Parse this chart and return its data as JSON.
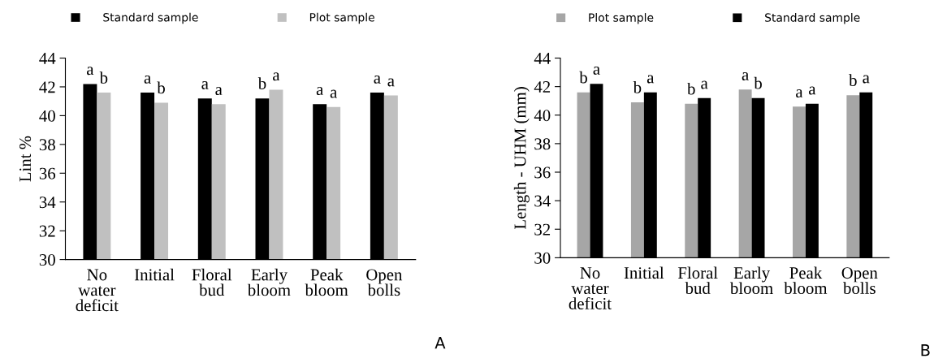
{
  "chart_data": [
    {
      "type": "bar",
      "ylabel": "Lint %",
      "categories": [
        "No\nwater\ndeficit",
        "Initial",
        "Floral\nbud",
        "Early\nbloom",
        "Peak\nbloom",
        "Open\nbolls"
      ],
      "series": [
        {
          "name": "Standard sample",
          "color": "#000000",
          "values": [
            42.2,
            41.6,
            41.2,
            41.2,
            40.8,
            41.6
          ],
          "value_labels": [
            "a",
            "a",
            "a",
            "b",
            "a",
            "a"
          ]
        },
        {
          "name": "Plot sample",
          "color": "#c0c0c0",
          "values": [
            41.6,
            40.9,
            40.8,
            41.8,
            40.6,
            41.4
          ],
          "value_labels": [
            "b",
            "b",
            "a",
            "a",
            "a",
            "a"
          ]
        }
      ],
      "ylim": [
        30,
        44
      ],
      "yticks": [
        30,
        32,
        34,
        36,
        38,
        40,
        42,
        44
      ],
      "grid": false,
      "legend": "top",
      "annotations": [
        "A"
      ]
    },
    {
      "type": "bar",
      "ylabel": "Length - UHM (mm)",
      "categories": [
        "No\nwater\ndeficit",
        "Initial",
        "Floral\nbud",
        "Early\nbloom",
        "Peak\nbloom",
        "Open\nbolls"
      ],
      "series": [
        {
          "name": "Plot sample",
          "color": "#a6a6a6",
          "values": [
            41.6,
            40.9,
            40.8,
            41.8,
            40.6,
            41.4
          ],
          "value_labels": [
            "b",
            "b",
            "b",
            "a",
            "a",
            "b"
          ]
        },
        {
          "name": "Standard sample",
          "color": "#000000",
          "values": [
            42.2,
            41.6,
            41.2,
            41.2,
            40.8,
            41.6
          ],
          "value_labels": [
            "a",
            "a",
            "a",
            "b",
            "a",
            "a"
          ]
        }
      ],
      "ylim": [
        30,
        44
      ],
      "yticks": [
        30,
        32,
        34,
        36,
        38,
        40,
        42,
        44
      ],
      "grid": false,
      "legend": "top",
      "annotations": [
        "B"
      ]
    }
  ]
}
